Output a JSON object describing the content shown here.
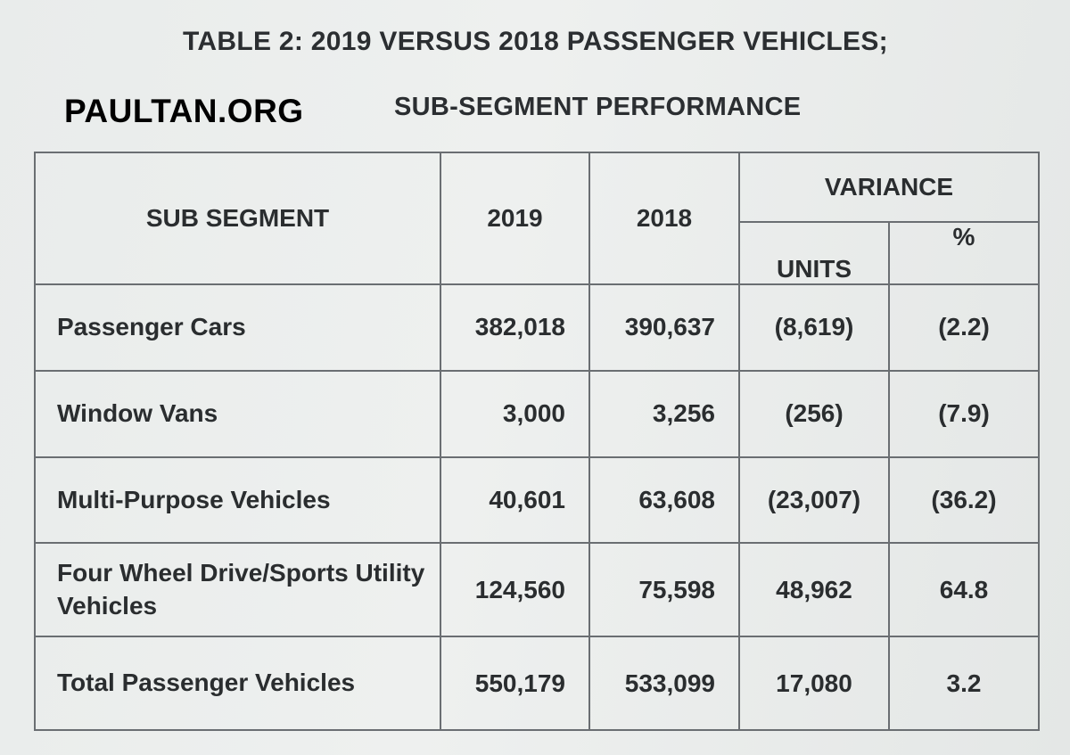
{
  "document": {
    "title": "TABLE 2:  2019 VERSUS 2018 PASSENGER VEHICLES;",
    "subtitle": "SUB-SEGMENT PERFORMANCE",
    "watermark": "PAULTAN.ORG"
  },
  "table": {
    "headers": {
      "segment": "SUB SEGMENT",
      "year_2019": "2019",
      "year_2018": "2018",
      "variance": "VARIANCE",
      "units": "UNITS",
      "percent": "%"
    },
    "rows": [
      {
        "segment": "Passenger Cars",
        "v2019": "382,018",
        "v2018": "390,637",
        "units": "(8,619)",
        "pct": "(2.2)"
      },
      {
        "segment": "Window Vans",
        "v2019": "3,000",
        "v2018": "3,256",
        "units": "(256)",
        "pct": "(7.9)"
      },
      {
        "segment": "Multi-Purpose Vehicles",
        "v2019": "40,601",
        "v2018": "63,608",
        "units": "(23,007)",
        "pct": "(36.2)"
      },
      {
        "segment": "Four Wheel Drive/Sports Utility Vehicles",
        "v2019": "124,560",
        "v2018": "75,598",
        "units": "48,962",
        "pct": "64.8"
      },
      {
        "segment": "Total Passenger Vehicles",
        "v2019": "550,179",
        "v2018": "533,099",
        "units": "17,080",
        "pct": "3.2"
      }
    ]
  }
}
